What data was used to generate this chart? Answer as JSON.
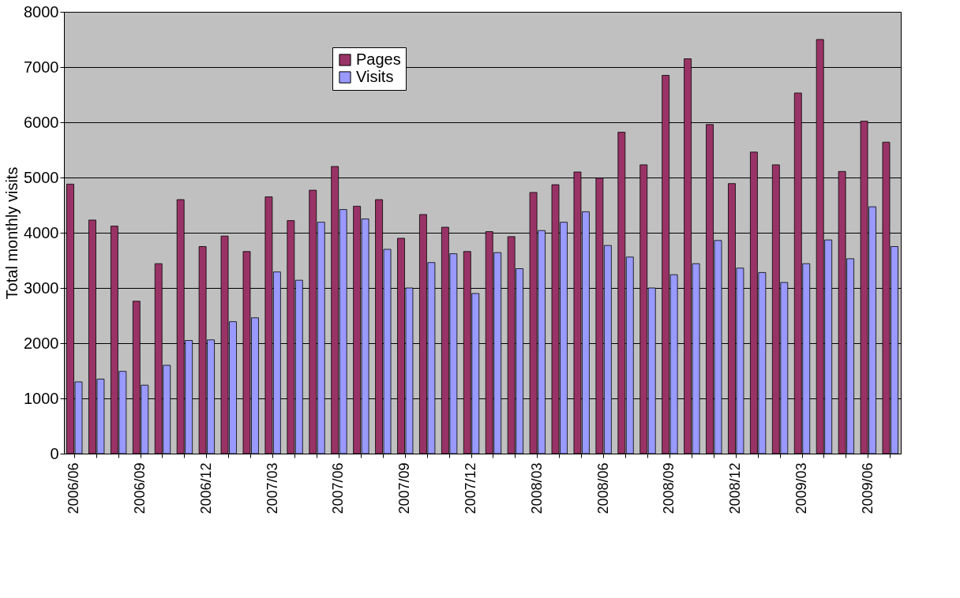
{
  "chart_data": {
    "type": "bar",
    "ylabel": "Total monthly visits",
    "categories": [
      "2006/06",
      null,
      null,
      "2006/09",
      null,
      null,
      "2006/12",
      null,
      null,
      "2007/03",
      null,
      null,
      "2007/06",
      null,
      null,
      "2007/09",
      null,
      null,
      "2007/12",
      null,
      null,
      "2008/03",
      null,
      null,
      "2008/06",
      null,
      null,
      "2008/09",
      null,
      null,
      "2008/12",
      null,
      null,
      "2009/03",
      null,
      null,
      "2009/06",
      null
    ],
    "series": [
      {
        "name": "Pages",
        "color": "#993366",
        "values": [
          4880,
          4230,
          4120,
          2760,
          3440,
          4600,
          3750,
          3940,
          3660,
          4650,
          4220,
          4770,
          5200,
          4480,
          4600,
          3900,
          4330,
          4100,
          3660,
          4020,
          3930,
          4730,
          4870,
          5100,
          4990,
          5820,
          5230,
          6850,
          7150,
          5960,
          4890,
          5460,
          5230,
          6530,
          7500,
          5110,
          6020,
          5640
        ]
      },
      {
        "name": "Visits",
        "color": "#9999ff",
        "values": [
          1300,
          1350,
          1490,
          1240,
          1600,
          2050,
          2060,
          2390,
          2460,
          3290,
          3140,
          4190,
          4420,
          4250,
          3700,
          3000,
          3460,
          3620,
          2900,
          3640,
          3350,
          4040,
          4190,
          4380,
          3770,
          3560,
          3000,
          3240,
          3440,
          3860,
          3360,
          3280,
          3100,
          3440,
          3870,
          3530,
          4470,
          3750
        ]
      }
    ],
    "ylim": [
      0,
      8000
    ],
    "yticks": [
      0,
      1000,
      2000,
      3000,
      4000,
      5000,
      6000,
      7000,
      8000
    ],
    "grid": "y",
    "legend": "top"
  }
}
